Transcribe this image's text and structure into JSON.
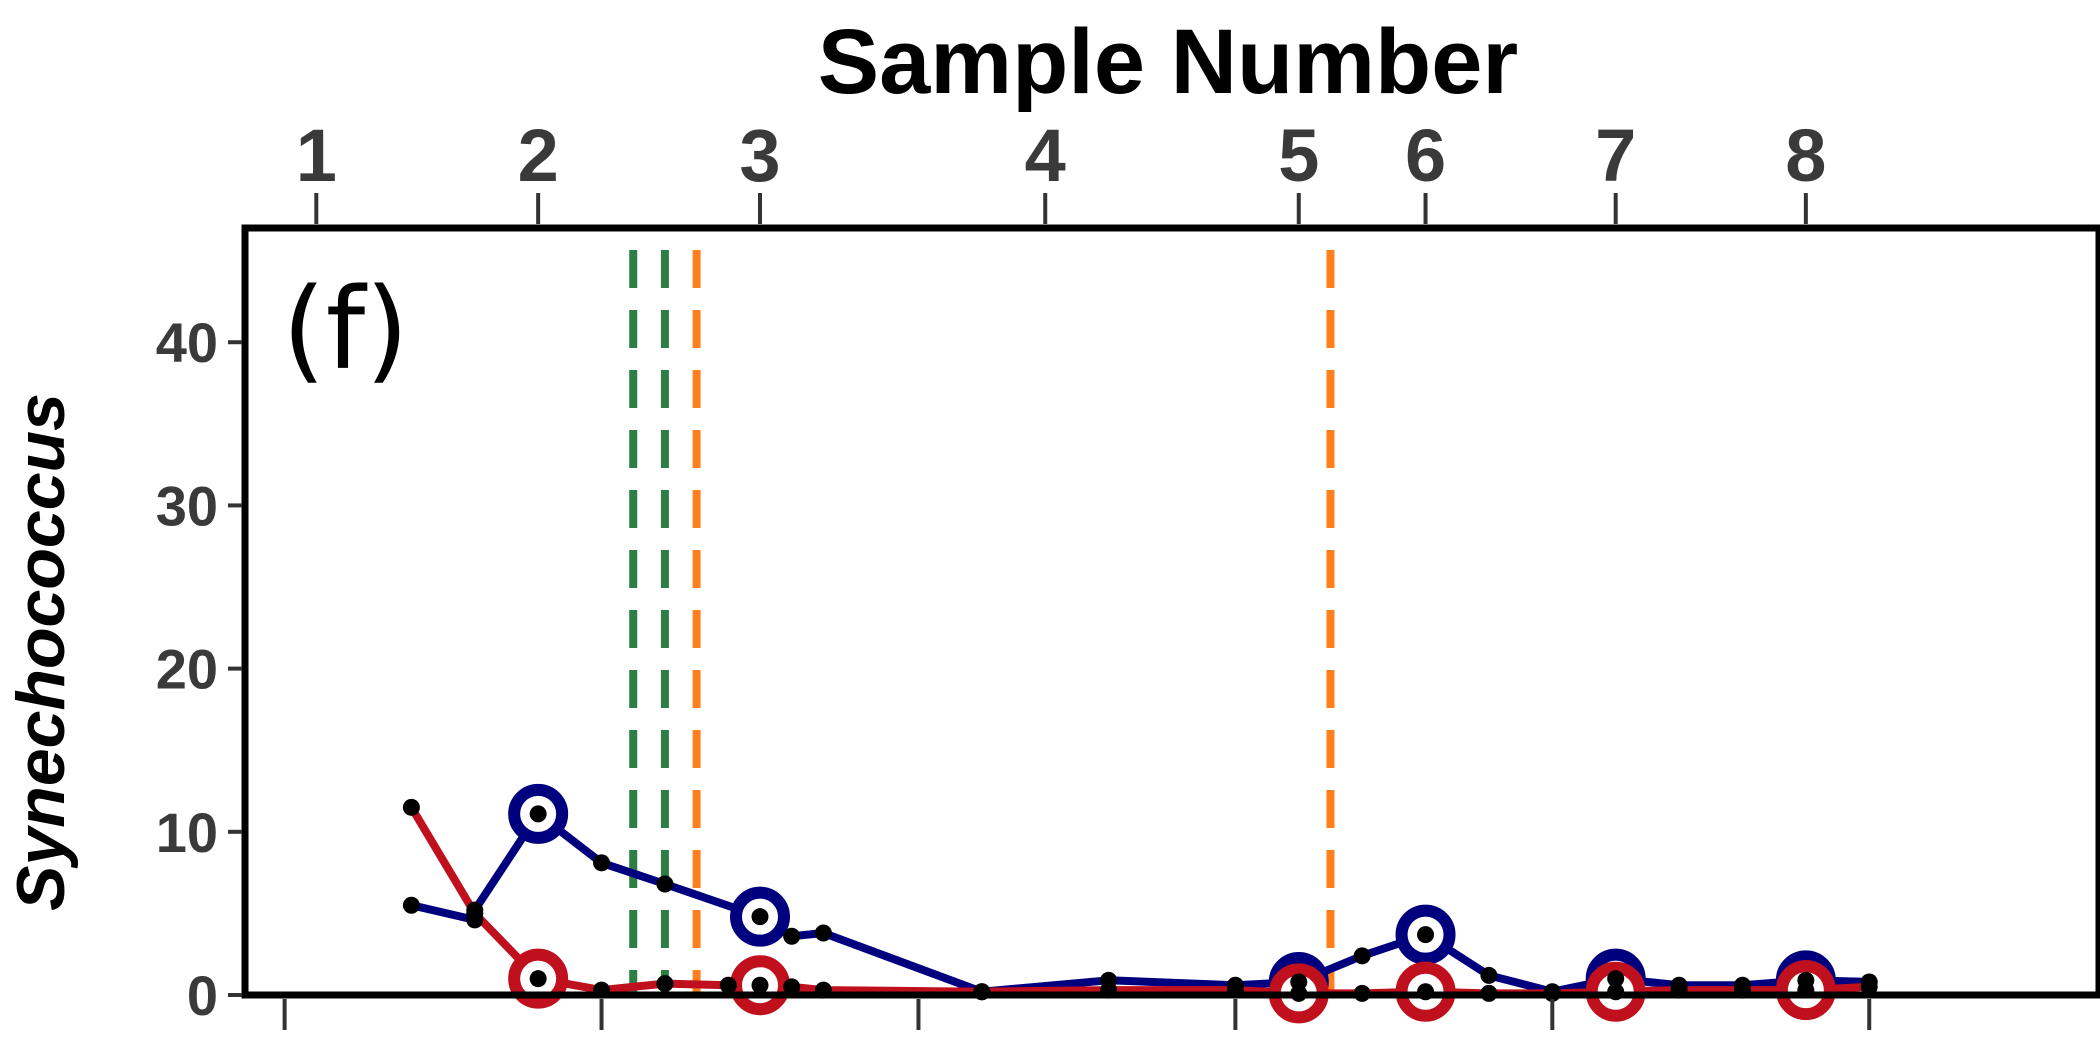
{
  "chart_data": {
    "type": "line",
    "title": "Sample Number",
    "panel_label": "(f)",
    "ylabel": "Synechococcus",
    "xlabel": "",
    "ylim": [
      0,
      47
    ],
    "y_ticks": [
      0,
      10,
      20,
      30,
      40
    ],
    "xlim": [
      -0.15,
      1.02
    ],
    "x_bottom_ticks": [
      -0.125,
      0.075,
      0.275,
      0.475,
      0.675,
      0.875
    ],
    "grid": false,
    "top_axis": {
      "ticks": [
        {
          "label": "1",
          "x": -0.105
        },
        {
          "label": "2",
          "x": 0.035
        },
        {
          "label": "3",
          "x": 0.175
        },
        {
          "label": "4",
          "x": 0.355
        },
        {
          "label": "5",
          "x": 0.515
        },
        {
          "label": "6",
          "x": 0.595
        },
        {
          "label": "7",
          "x": 0.715
        },
        {
          "label": "8",
          "x": 0.835
        }
      ]
    },
    "vlines": [
      {
        "x": 0.095,
        "color": "#2e7d45"
      },
      {
        "x": 0.115,
        "color": "#2e7d45"
      },
      {
        "x": 0.135,
        "color": "#ff7f1e"
      },
      {
        "x": 0.535,
        "color": "#ff7f1e"
      }
    ],
    "series": [
      {
        "color": "#00007f",
        "x": [
          -0.045,
          -0.005,
          -0.005,
          0.035,
          0.075,
          0.115,
          0.175,
          0.195,
          0.215,
          0.315,
          0.395,
          0.475,
          0.515,
          0.555,
          0.595,
          0.635,
          0.675,
          0.715,
          0.755,
          0.795,
          0.835,
          0.875
        ],
        "y": [
          5.5,
          4.6,
          5.2,
          11.1,
          8.1,
          6.8,
          4.8,
          3.6,
          3.8,
          0.2,
          0.9,
          0.6,
          0.8,
          2.4,
          3.7,
          1.2,
          0.2,
          1.0,
          0.6,
          0.6,
          0.9,
          0.8
        ],
        "highlight_x": [
          0.035,
          0.175,
          0.515,
          0.595,
          0.715,
          0.835
        ]
      },
      {
        "color": "#c0101e",
        "x": [
          -0.045,
          -0.005,
          0.035,
          0.075,
          0.115,
          0.155,
          0.175,
          0.195,
          0.215,
          0.315,
          0.395,
          0.475,
          0.515,
          0.555,
          0.595,
          0.635,
          0.675,
          0.715,
          0.755,
          0.795,
          0.835,
          0.875
        ],
        "y": [
          11.5,
          5.0,
          1.0,
          0.3,
          0.7,
          0.6,
          0.6,
          0.5,
          0.3,
          0.2,
          0.3,
          0.3,
          0.1,
          0.1,
          0.2,
          0.1,
          0.1,
          0.2,
          0.3,
          0.3,
          0.3,
          0.5
        ],
        "highlight_x": [
          0.035,
          0.175,
          0.515,
          0.595,
          0.715,
          0.835
        ]
      }
    ]
  }
}
